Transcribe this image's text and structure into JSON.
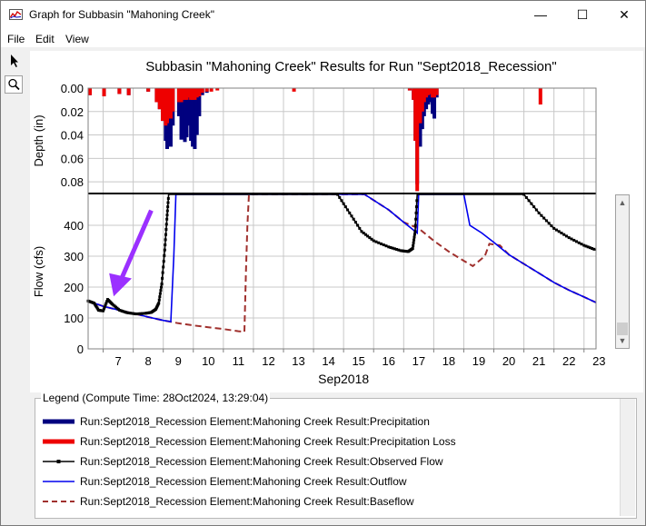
{
  "window": {
    "title": "Graph for Subbasin \"Mahoning Creek\"",
    "minimize_glyph": "—",
    "maximize_glyph": "☐",
    "close_glyph": "✕"
  },
  "menu": [
    "File",
    "Edit",
    "View"
  ],
  "toolbar": {
    "tools": [
      "pointer-icon",
      "zoom-icon"
    ]
  },
  "chart_data": [
    {
      "type": "bar",
      "title": "Subbasin \"Mahoning Creek\" Results for Run \"Sept2018_Recession\"",
      "ylabel": "Depth (in)",
      "ylim": [
        0.09,
        0
      ],
      "yticks": [
        "0.00",
        "0.02",
        "0.04",
        "0.06",
        "0.08"
      ],
      "y_inverted": true,
      "x_range_days": [
        6.5,
        23.4
      ],
      "series": [
        {
          "name": "Run:Sept2018_Recession Element:Mahoning Creek Result:Precipitation",
          "color": "#00007f",
          "bars": [
            [
              6.56,
              0.006
            ],
            [
              7.03,
              0.007
            ],
            [
              7.54,
              0.005
            ],
            [
              7.85,
              0.006
            ],
            [
              8.5,
              0.003
            ],
            [
              8.78,
              0.012
            ],
            [
              8.88,
              0.018
            ],
            [
              8.98,
              0.028
            ],
            [
              9.08,
              0.045
            ],
            [
              9.13,
              0.052
            ],
            [
              9.2,
              0.043
            ],
            [
              9.25,
              0.05
            ],
            [
              9.32,
              0.032
            ],
            [
              9.52,
              0.024
            ],
            [
              9.6,
              0.044
            ],
            [
              9.65,
              0.036
            ],
            [
              9.72,
              0.046
            ],
            [
              9.78,
              0.042
            ],
            [
              9.86,
              0.032
            ],
            [
              9.92,
              0.045
            ],
            [
              9.98,
              0.05
            ],
            [
              10.05,
              0.052
            ],
            [
              10.12,
              0.04
            ],
            [
              10.2,
              0.024
            ],
            [
              10.3,
              0.006
            ],
            [
              10.45,
              0.004
            ],
            [
              17.2,
              0.002
            ],
            [
              17.33,
              0.01
            ],
            [
              17.39,
              0.045
            ],
            [
              17.45,
              0.082
            ],
            [
              17.55,
              0.05
            ],
            [
              17.62,
              0.035
            ],
            [
              17.68,
              0.024
            ],
            [
              17.75,
              0.018
            ],
            [
              17.82,
              0.014
            ],
            [
              17.9,
              0.012
            ],
            [
              17.96,
              0.022
            ],
            [
              18.02,
              0.026
            ],
            [
              18.1,
              0.008
            ]
          ]
        },
        {
          "name": "Run:Sept2018_Recession Element:Mahoning Creek Result:Precipitation Loss",
          "color": "#ee0000",
          "bars": [
            [
              6.56,
              0.006
            ],
            [
              7.03,
              0.007
            ],
            [
              7.54,
              0.005
            ],
            [
              7.85,
              0.006
            ],
            [
              8.5,
              0.003
            ],
            [
              8.78,
              0.012
            ],
            [
              8.88,
              0.018
            ],
            [
              8.98,
              0.028
            ],
            [
              9.08,
              0.032
            ],
            [
              9.13,
              0.03
            ],
            [
              9.2,
              0.022
            ],
            [
              9.25,
              0.026
            ],
            [
              9.32,
              0.02
            ],
            [
              9.52,
              0.012
            ],
            [
              9.6,
              0.012
            ],
            [
              9.65,
              0.01
            ],
            [
              9.72,
              0.01
            ],
            [
              9.78,
              0.01
            ],
            [
              9.86,
              0.008
            ],
            [
              9.92,
              0.01
            ],
            [
              9.98,
              0.01
            ],
            [
              10.05,
              0.01
            ],
            [
              10.12,
              0.008
            ],
            [
              10.2,
              0.007
            ],
            [
              10.3,
              0.004
            ],
            [
              10.45,
              0.003
            ],
            [
              10.6,
              0.003
            ],
            [
              10.8,
              0.002
            ],
            [
              13.35,
              0.003
            ],
            [
              17.2,
              0.002
            ],
            [
              17.33,
              0.01
            ],
            [
              17.39,
              0.045
            ],
            [
              17.45,
              0.088
            ],
            [
              17.55,
              0.03
            ],
            [
              17.62,
              0.02
            ],
            [
              17.68,
              0.012
            ],
            [
              17.75,
              0.008
            ],
            [
              17.82,
              0.006
            ],
            [
              17.9,
              0.005
            ],
            [
              17.96,
              0.008
            ],
            [
              18.02,
              0.008
            ],
            [
              18.1,
              0.006
            ],
            [
              21.55,
              0.014
            ]
          ]
        }
      ]
    },
    {
      "type": "line",
      "xlabel": "Sep2018",
      "ylabel": "Flow (cfs)",
      "ylim": [
        0,
        500
      ],
      "yticks": [
        "0",
        "100",
        "200",
        "300",
        "400"
      ],
      "categories": [
        "7",
        "8",
        "9",
        "10",
        "11",
        "12",
        "13",
        "14",
        "15",
        "16",
        "17",
        "18",
        "19",
        "20",
        "21",
        "22",
        "23"
      ],
      "series": [
        {
          "name": "Run:Sept2018_Recession Element:Mahoning Creek Result:Observed Flow",
          "color": "#000000",
          "style": "solid-markers",
          "points": [
            [
              6.5,
              155
            ],
            [
              6.7,
              148
            ],
            [
              6.85,
              125
            ],
            [
              7.0,
              123
            ],
            [
              7.15,
              160
            ],
            [
              7.3,
              145
            ],
            [
              7.55,
              125
            ],
            [
              7.8,
              117
            ],
            [
              8.1,
              113
            ],
            [
              8.4,
              115
            ],
            [
              8.6,
              118
            ],
            [
              8.75,
              128
            ],
            [
              8.85,
              148
            ],
            [
              8.95,
              210
            ],
            [
              9.05,
              320
            ],
            [
              9.12,
              420
            ],
            [
              9.18,
              500
            ],
            [
              14.8,
              500
            ],
            [
              15.2,
              440
            ],
            [
              15.6,
              380
            ],
            [
              16.0,
              350
            ],
            [
              16.5,
              330
            ],
            [
              16.9,
              318
            ],
            [
              17.15,
              315
            ],
            [
              17.3,
              325
            ],
            [
              17.38,
              380
            ],
            [
              17.45,
              500
            ],
            [
              21.0,
              500
            ],
            [
              21.5,
              440
            ],
            [
              22.0,
              390
            ],
            [
              22.5,
              360
            ],
            [
              23.0,
              335
            ],
            [
              23.4,
              320
            ]
          ]
        },
        {
          "name": "Run:Sept2018_Recession Element:Mahoning Creek Result:Outflow",
          "color": "#0000ee",
          "style": "solid",
          "points": [
            [
              6.5,
              155
            ],
            [
              7.0,
              138
            ],
            [
              7.5,
              126
            ],
            [
              8.0,
              115
            ],
            [
              8.5,
              103
            ],
            [
              9.0,
              92
            ],
            [
              9.25,
              88
            ],
            [
              9.35,
              300
            ],
            [
              9.42,
              500
            ],
            [
              15.7,
              500
            ],
            [
              16.5,
              450
            ],
            [
              17.0,
              410
            ],
            [
              17.45,
              375
            ],
            [
              17.5,
              500
            ],
            [
              19.0,
              500
            ],
            [
              19.2,
              400
            ],
            [
              19.6,
              375
            ],
            [
              20.0,
              345
            ],
            [
              20.5,
              305
            ],
            [
              21.0,
              275
            ],
            [
              21.5,
              245
            ],
            [
              22.0,
              215
            ],
            [
              22.5,
              190
            ],
            [
              23.0,
              168
            ],
            [
              23.4,
              150
            ]
          ]
        },
        {
          "name": "Run:Sept2018_Recession Element:Mahoning Creek Result:Baseflow",
          "color": "#a0302d",
          "style": "dashed",
          "points": [
            [
              6.5,
              155
            ],
            [
              7.0,
              138
            ],
            [
              7.5,
              126
            ],
            [
              8.0,
              115
            ],
            [
              8.5,
              103
            ],
            [
              9.0,
              92
            ],
            [
              9.5,
              83
            ],
            [
              10.0,
              76
            ],
            [
              10.5,
              70
            ],
            [
              11.0,
              64
            ],
            [
              11.5,
              57
            ],
            [
              11.7,
              55
            ],
            [
              11.75,
              250
            ],
            [
              11.8,
              400
            ],
            [
              11.85,
              500
            ],
            [
              15.7,
              500
            ],
            [
              16.5,
              450
            ],
            [
              17.0,
              410
            ],
            [
              17.5,
              390
            ],
            [
              18.0,
              350
            ],
            [
              18.5,
              315
            ],
            [
              19.0,
              285
            ],
            [
              19.3,
              268
            ],
            [
              19.7,
              300
            ],
            [
              19.85,
              340
            ],
            [
              20.2,
              335
            ],
            [
              20.5,
              305
            ],
            [
              21.0,
              275
            ],
            [
              21.5,
              245
            ],
            [
              22.0,
              215
            ],
            [
              22.5,
              190
            ],
            [
              23.0,
              168
            ],
            [
              23.4,
              150
            ]
          ]
        }
      ]
    }
  ],
  "legend": {
    "title": "Legend (Compute Time: 28Oct2024, 13:29:04)",
    "items": [
      {
        "label": "Run:Sept2018_Recession Element:Mahoning Creek Result:Precipitation",
        "color": "#00007f",
        "style": "thick"
      },
      {
        "label": "Run:Sept2018_Recession Element:Mahoning Creek Result:Precipitation Loss",
        "color": "#ee0000",
        "style": "thick"
      },
      {
        "label": "Run:Sept2018_Recession Element:Mahoning Creek Result:Observed Flow",
        "color": "#000000",
        "style": "marker"
      },
      {
        "label": "Run:Sept2018_Recession Element:Mahoning Creek Result:Outflow",
        "color": "#0000ee",
        "style": "thin"
      },
      {
        "label": "Run:Sept2018_Recession Element:Mahoning Creek Result:Baseflow",
        "color": "#a0302d",
        "style": "dashed"
      }
    ]
  },
  "annotation_color": "#9b30ff"
}
